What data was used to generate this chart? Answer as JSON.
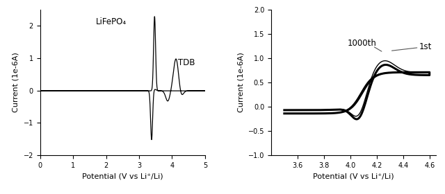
{
  "left": {
    "title_text": "LiFePO₄",
    "annotation": "TDB",
    "xlabel": "Potential (V vs Li⁺/Li)",
    "ylabel": "Current (1e-6A)",
    "xlim": [
      0,
      5
    ],
    "ylim": [
      -2,
      2.5
    ],
    "xticks": [
      0,
      1,
      2,
      3,
      4,
      5
    ],
    "yticks": [
      -2,
      -1,
      0,
      1,
      2
    ]
  },
  "right": {
    "label_1st": "1st",
    "label_1000th": "1000th",
    "xlabel": "Potential (V vs Li⁺/Li)",
    "ylabel": "Current (1e-6A)",
    "xlim": [
      3.4,
      4.65
    ],
    "ylim": [
      -1.0,
      2.0
    ],
    "xticks": [
      3.6,
      3.8,
      4.0,
      4.2,
      4.4,
      4.6
    ],
    "yticks": [
      -1.0,
      -0.5,
      0.0,
      0.5,
      1.0,
      1.5,
      2.0
    ]
  },
  "line_color": "#000000",
  "background_color": "#ffffff",
  "fontsize_label": 8,
  "fontsize_tick": 7,
  "fontsize_annot": 8.5
}
